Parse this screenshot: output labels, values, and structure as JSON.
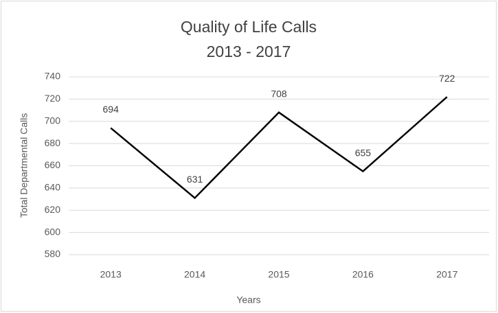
{
  "chart_data": {
    "type": "line",
    "title": "Quality of Life Calls",
    "subtitle": "2013 - 2017",
    "x_label": "Years",
    "y_label": "Total Departmental Calls",
    "categories": [
      "2013",
      "2014",
      "2015",
      "2016",
      "2017"
    ],
    "series": [
      {
        "name": "Total Departmental Calls",
        "color": "#000000",
        "values": [
          694,
          631,
          708,
          655,
          722
        ]
      }
    ],
    "ylim": [
      580,
      740
    ],
    "yticks": [
      580,
      600,
      620,
      640,
      660,
      680,
      700,
      720,
      740
    ],
    "grid": true
  }
}
